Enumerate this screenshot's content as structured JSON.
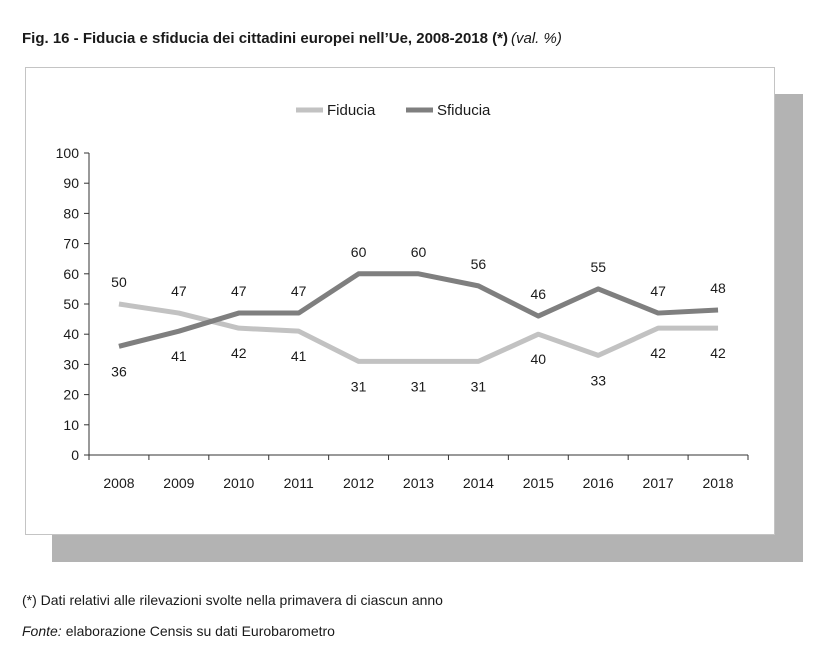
{
  "figure": {
    "title": "Fig. 16 - Fiducia e sfiducia dei cittadini europei nell’Ue, 2008-2018 (*)",
    "title_unit": "(val. %)",
    "footnote": "(*) Dati relativi alle rilevazioni svolte nella primavera di ciascun anno",
    "source_label": "Fonte:",
    "source_text": "elaborazione Censis su dati Eurobarometro"
  },
  "chart_data": {
    "type": "line",
    "x": [
      "2008",
      "2009",
      "2010",
      "2011",
      "2012",
      "2013",
      "2014",
      "2015",
      "2016",
      "2017",
      "2018"
    ],
    "series": [
      {
        "name": "Fiducia",
        "color": "#c2c2c2",
        "values": [
          50,
          47,
          42,
          41,
          31,
          31,
          31,
          40,
          33,
          42,
          42
        ],
        "label_position": [
          -1,
          -1,
          1,
          1,
          1,
          1,
          1,
          1,
          1,
          1,
          1
        ]
      },
      {
        "name": "Sfiducia",
        "color": "#7f7f7f",
        "values": [
          36,
          41,
          47,
          47,
          60,
          60,
          56,
          46,
          55,
          47,
          48
        ],
        "label_position": [
          1,
          1,
          -1,
          -1,
          -1,
          -1,
          -1,
          -1,
          -1,
          -1,
          -1
        ]
      }
    ],
    "ylim": [
      0,
      100
    ],
    "yticks": [
      0,
      10,
      20,
      30,
      40,
      50,
      60,
      70,
      80,
      90,
      100
    ],
    "grid": false,
    "legend_position": "top-center",
    "data_labels": true
  }
}
